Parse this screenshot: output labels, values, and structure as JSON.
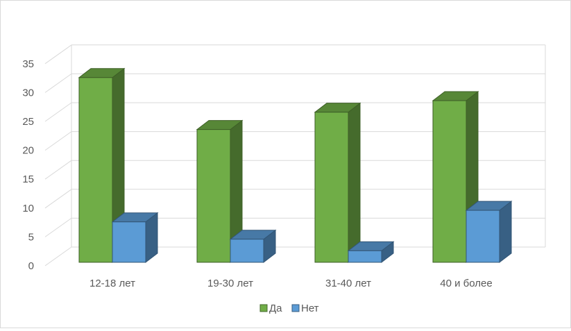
{
  "chart_data": {
    "type": "bar",
    "subtype": "3d-clustered-column",
    "categories": [
      "12-18 лет",
      "19-30 лет",
      "31-40 лет",
      "40 и более"
    ],
    "series": [
      {
        "name": "Да",
        "values": [
          32,
          23,
          26,
          28
        ],
        "color": "#70ad47"
      },
      {
        "name": "Нет",
        "values": [
          7,
          4,
          2,
          9
        ],
        "color": "#5b9bd5"
      }
    ],
    "ylim": [
      0,
      35
    ],
    "yticks": [
      0,
      5,
      10,
      15,
      20,
      25,
      30,
      35
    ],
    "grid": true,
    "legend": "bottom"
  }
}
